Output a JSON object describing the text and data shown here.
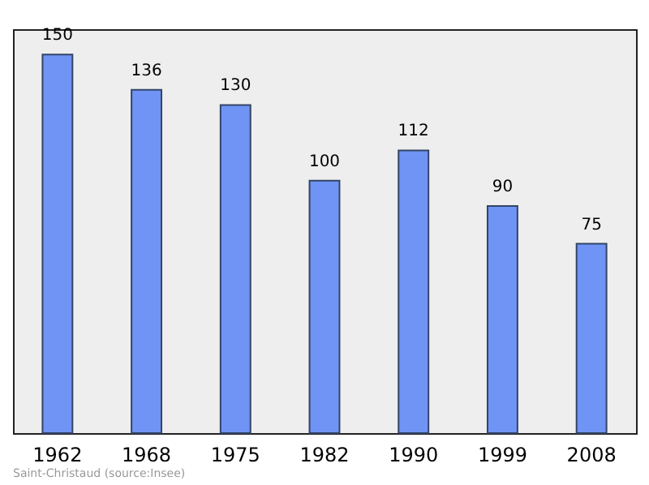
{
  "chart_data": {
    "type": "bar",
    "categories": [
      "1962",
      "1968",
      "1975",
      "1982",
      "1990",
      "1999",
      "2008"
    ],
    "values": [
      150,
      136,
      130,
      100,
      112,
      90,
      75
    ],
    "color": "#6f94f5",
    "data_labels": true,
    "grid": false,
    "annotations": [
      "Saint-Christaud    (source:Insee)"
    ]
  }
}
